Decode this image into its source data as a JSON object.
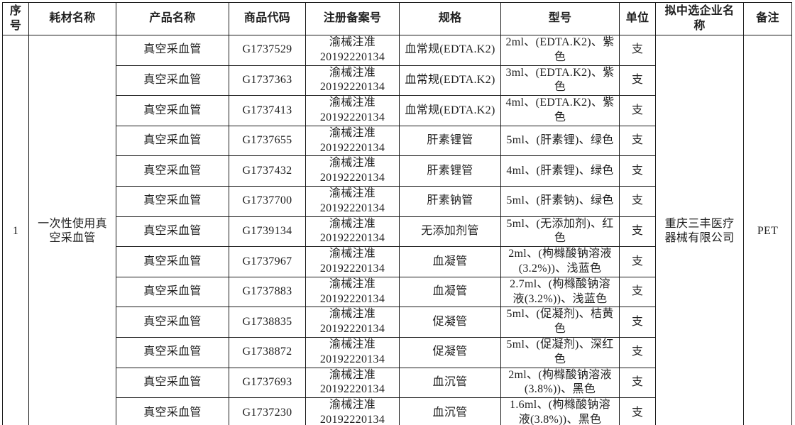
{
  "table": {
    "headers": {
      "serial": "序号",
      "consumable_name": "耗材名称",
      "product_name": "产品名称",
      "product_code": "商品代码",
      "registration_no": "注册备案号",
      "spec": "规格",
      "model": "型号",
      "unit": "单位",
      "company": "拟中选企业名称",
      "remark": "备注"
    },
    "merged": {
      "serial": "1",
      "consumable_name": "一次性使用真空采血管",
      "company": "重庆三丰医疗器械有限公司",
      "remark": "PET"
    },
    "rows": [
      {
        "product_name": "真空采血管",
        "code": "G1737529",
        "reg_no": "渝械注准\n20192220134",
        "spec": "血常规(EDTA.K2)",
        "model": "2ml、(EDTA.K2)、紫色",
        "unit": "支"
      },
      {
        "product_name": "真空采血管",
        "code": "G1737363",
        "reg_no": "渝械注准\n20192220134",
        "spec": "血常规(EDTA.K2)",
        "model": "3ml、(EDTA.K2)、紫色",
        "unit": "支"
      },
      {
        "product_name": "真空采血管",
        "code": "G1737413",
        "reg_no": "渝械注准\n20192220134",
        "spec": "血常规(EDTA.K2)",
        "model": "4ml、(EDTA.K2)、紫色",
        "unit": "支"
      },
      {
        "product_name": "真空采血管",
        "code": "G1737655",
        "reg_no": "渝械注准\n20192220134",
        "spec": "肝素锂管",
        "model": "5ml、(肝素锂)、绿色",
        "unit": "支"
      },
      {
        "product_name": "真空采血管",
        "code": "G1737432",
        "reg_no": "渝械注准\n20192220134",
        "spec": "肝素锂管",
        "model": "4ml、(肝素锂)、绿色",
        "unit": "支"
      },
      {
        "product_name": "真空采血管",
        "code": "G1737700",
        "reg_no": "渝械注准\n20192220134",
        "spec": "肝素钠管",
        "model": "5ml、(肝素钠)、绿色",
        "unit": "支"
      },
      {
        "product_name": "真空采血管",
        "code": "G1739134",
        "reg_no": "渝械注准\n20192220134",
        "spec": "无添加剂管",
        "model": "5ml、(无添加剂)、红色",
        "unit": "支"
      },
      {
        "product_name": "真空采血管",
        "code": "G1737967",
        "reg_no": "渝械注准\n20192220134",
        "spec": "血凝管",
        "model": "2ml、(枸橼酸钠溶液(3.2%))、浅蓝色",
        "unit": "支"
      },
      {
        "product_name": "真空采血管",
        "code": "G1737883",
        "reg_no": "渝械注准\n20192220134",
        "spec": "血凝管",
        "model": "2.7ml、(枸橼酸钠溶液(3.2%))、浅蓝色",
        "unit": "支"
      },
      {
        "product_name": "真空采血管",
        "code": "G1738835",
        "reg_no": "渝械注准\n20192220134",
        "spec": "促凝管",
        "model": "5ml、(促凝剂)、桔黄色",
        "unit": "支"
      },
      {
        "product_name": "真空采血管",
        "code": "G1738872",
        "reg_no": "渝械注准\n20192220134",
        "spec": "促凝管",
        "model": "5ml、(促凝剂)、深红色",
        "unit": "支"
      },
      {
        "product_name": "真空采血管",
        "code": "G1737693",
        "reg_no": "渝械注准\n20192220134",
        "spec": "血沉管",
        "model": "2ml、(枸橼酸钠溶液(3.8%))、黑色",
        "unit": "支"
      },
      {
        "product_name": "真空采血管",
        "code": "G1737230",
        "reg_no": "渝械注准\n20192220134",
        "spec": "血沉管",
        "model": "1.6ml、(枸橼酸钠溶液(3.8%))、黑色",
        "unit": "支"
      }
    ]
  }
}
